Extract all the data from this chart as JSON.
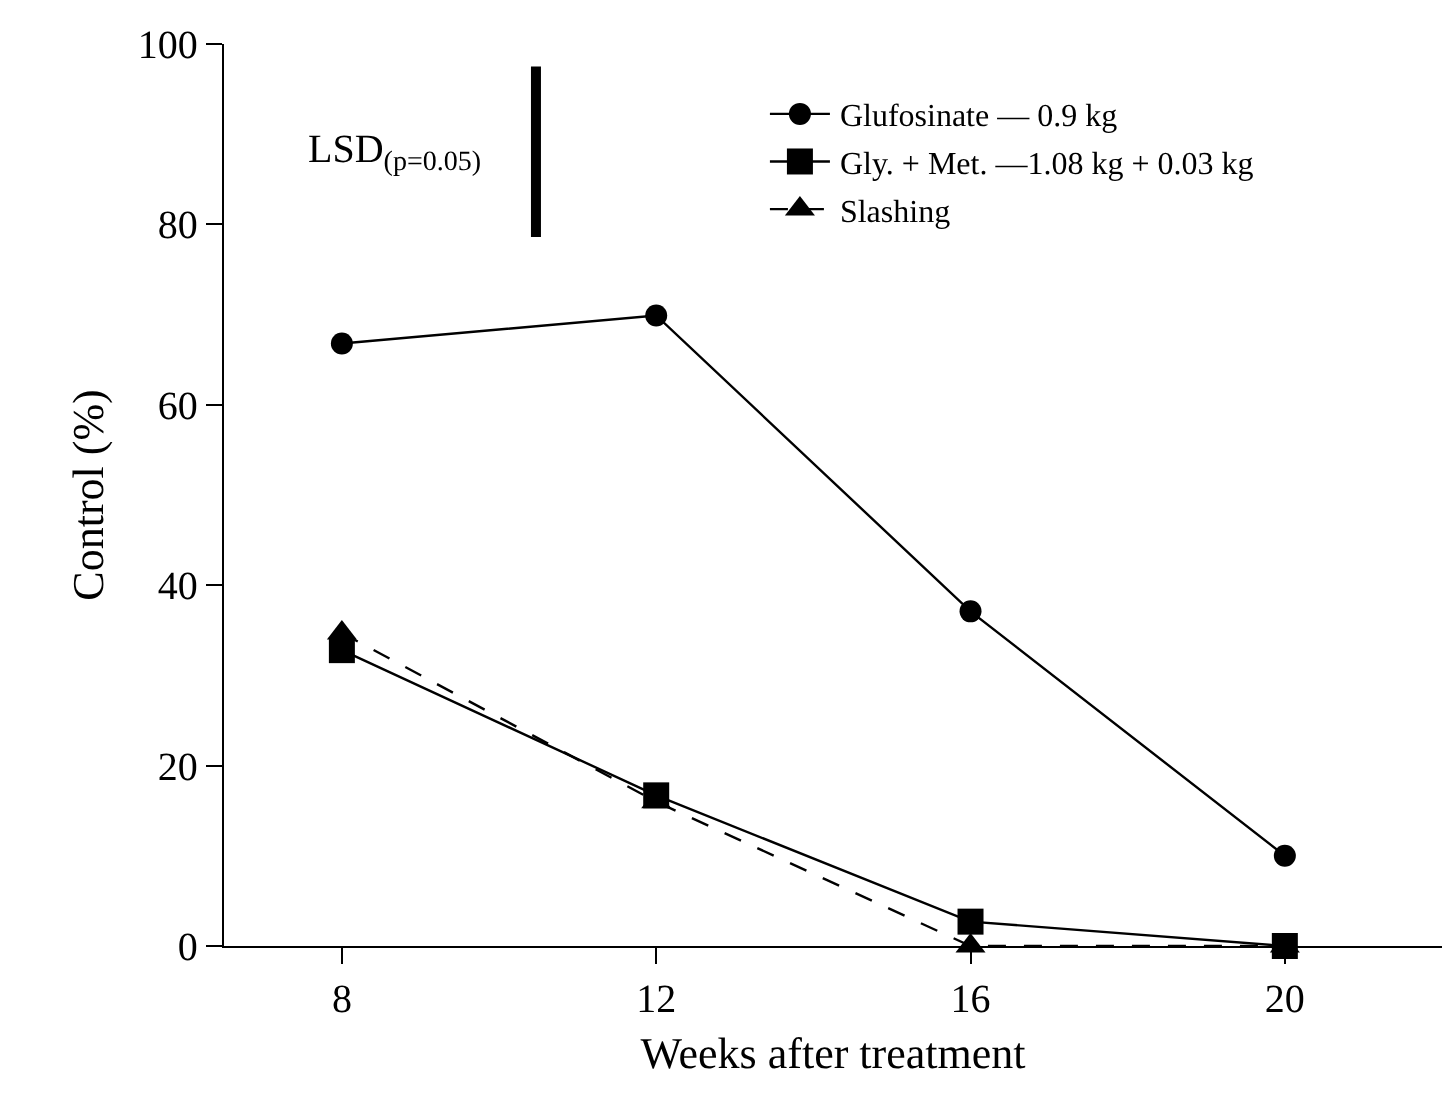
{
  "chart_data": {
    "type": "line",
    "xlabel": "Weeks after treatment",
    "ylabel": "Control (%)",
    "x": [
      8,
      12,
      16,
      20
    ],
    "xlim": [
      6.5,
      22
    ],
    "xticks": [
      8,
      12,
      16,
      20
    ],
    "ylim": [
      0,
      100
    ],
    "yticks": [
      0,
      20,
      40,
      60,
      80,
      100
    ],
    "legend": "top right",
    "series": [
      {
        "name": "Glufosinate — 0.9 kg",
        "color": "#000000",
        "values": [
          66.8,
          69.9,
          37.1,
          10
        ],
        "marker": "circle",
        "line_style": "solid"
      },
      {
        "name": "Gly. + Met. —1.08 kg + 0.03 kg",
        "color": "#000000",
        "values": [
          32.8,
          16.7,
          2.7,
          0
        ],
        "marker": "square",
        "line_style": "solid"
      },
      {
        "name": "Slashing",
        "color": "#000000",
        "values": [
          34.7,
          16,
          0,
          0
        ],
        "marker": "triangle",
        "line_style": "dashed"
      },
      {
        "color": "#000000",
        "x": [
          10.47,
          10.47
        ],
        "values": [
          97.5,
          78.6
        ],
        "marker": "none",
        "line_style": "solid"
      }
    ],
    "annotations": [
      {
        "text": "LSD$_{(p=0.05)}$",
        "x": 10.47,
        "y": 88
      }
    ]
  }
}
